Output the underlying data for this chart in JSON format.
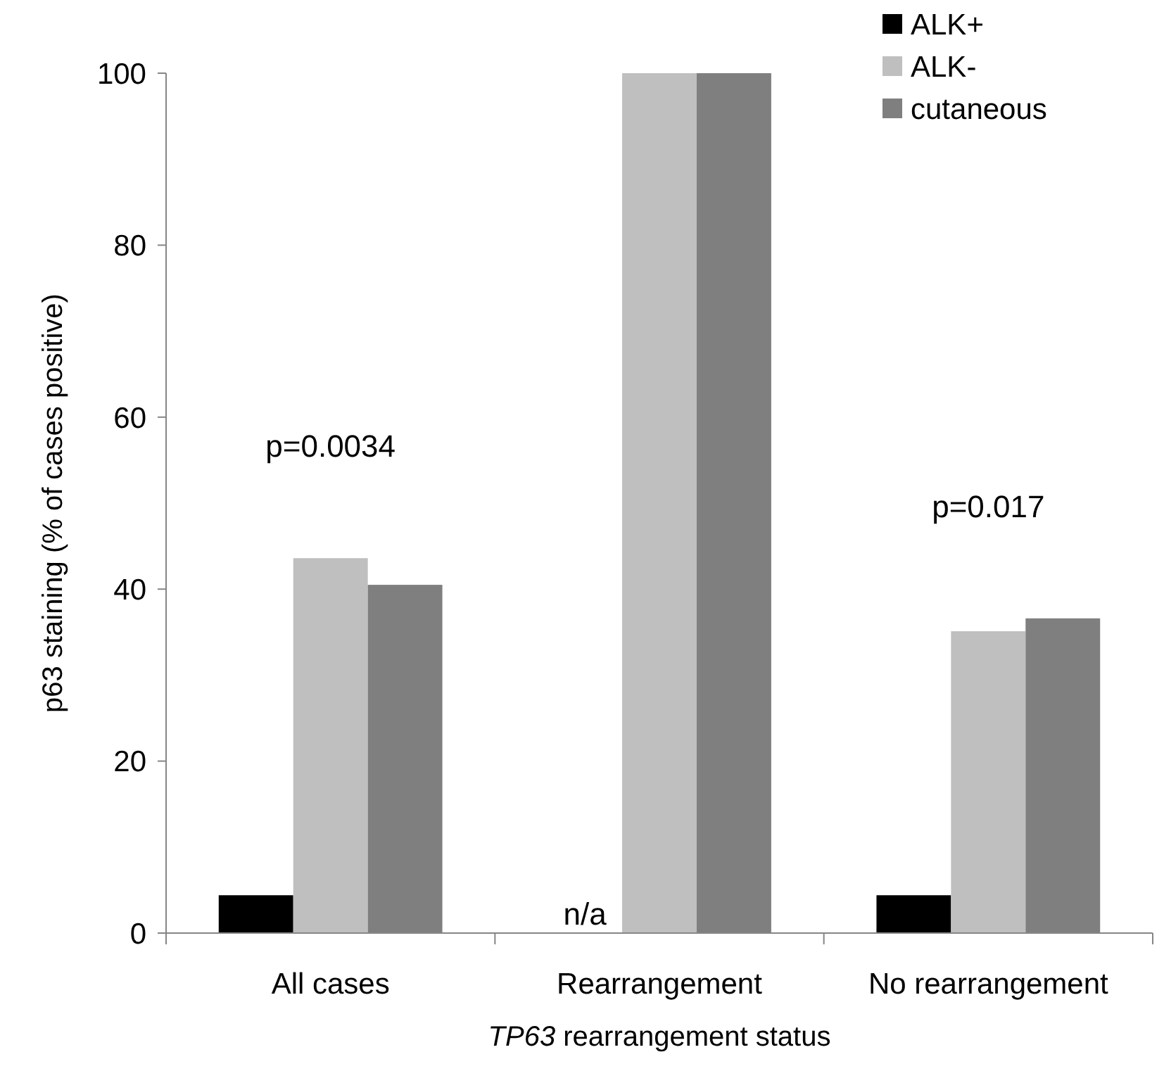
{
  "chart_data": {
    "type": "bar",
    "xlabel": "TP63 rearrangement status",
    "ylabel": "p63 staining (% of cases positive)",
    "categories": [
      "All cases",
      "Rearrangement",
      "No rearrangement"
    ],
    "series": [
      {
        "name": "ALK+",
        "color": "#000000",
        "values": [
          4.4,
          null,
          4.4
        ]
      },
      {
        "name": "ALK-",
        "color": "#bfbfbf",
        "values": [
          43.6,
          100,
          35.1
        ]
      },
      {
        "name": "cutaneous",
        "color": "#7f7f7f",
        "values": [
          40.5,
          100,
          36.6
        ]
      }
    ],
    "ylim": [
      0,
      100
    ],
    "yticks": [
      0,
      20,
      40,
      60,
      80,
      100
    ],
    "legend": "top right",
    "grid": false,
    "annotations": [
      "p=0.0034",
      {
        "text": "n/a",
        "x": "Rearrangement",
        "y": 0
      },
      "p=0.017"
    ]
  }
}
